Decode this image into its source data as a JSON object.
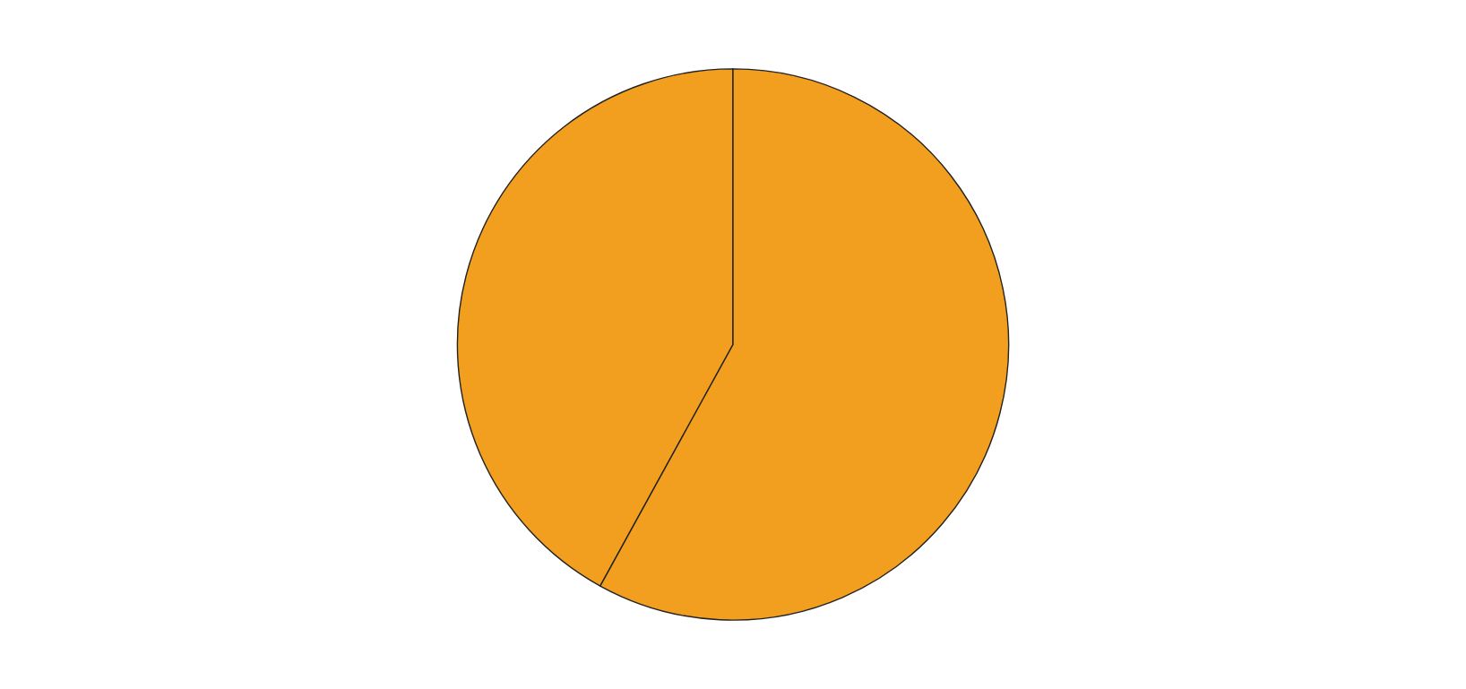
{
  "chart_data": {
    "type": "pie",
    "categories": [
      null,
      null
    ],
    "values": [
      42,
      58
    ],
    "colors": [
      "#f29e1e",
      "#f29e1e"
    ]
  }
}
